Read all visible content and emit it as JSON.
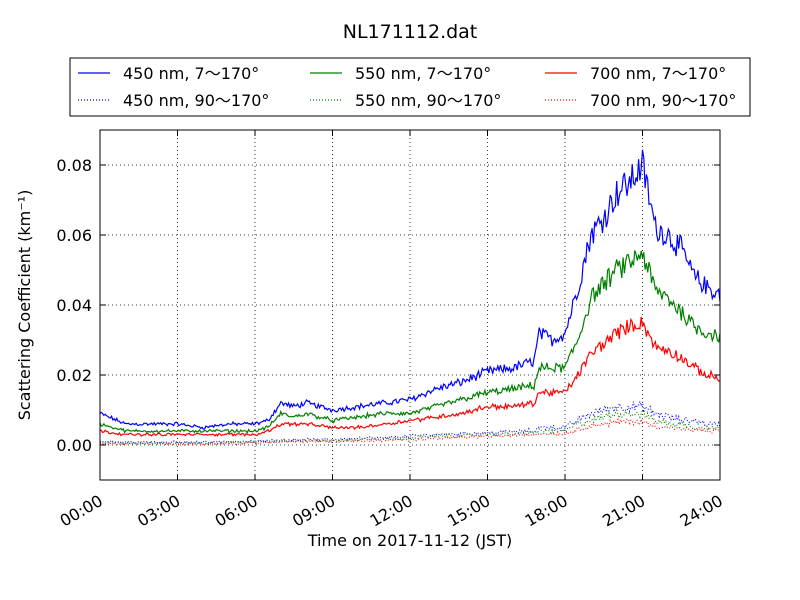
{
  "chart_data": {
    "type": "line",
    "title": "NL171112.dat",
    "xlabel": "Time on 2017-11-12 (JST)",
    "ylabel": "Scattering Coefficient (km⁻¹)",
    "x_unit": "hours",
    "xlim": [
      0,
      24
    ],
    "ylim": [
      -0.01,
      0.09
    ],
    "x_ticks": [
      0,
      3,
      6,
      9,
      12,
      15,
      18,
      21,
      24
    ],
    "x_tick_labels": [
      "00:00",
      "03:00",
      "06:00",
      "09:00",
      "12:00",
      "15:00",
      "18:00",
      "21:00",
      "24:00"
    ],
    "y_ticks": [
      0.0,
      0.02,
      0.04,
      0.06,
      0.08
    ],
    "y_tick_labels": [
      "0.00",
      "0.02",
      "0.04",
      "0.06",
      "0.08"
    ],
    "grid": true,
    "legend_placement": "top, above plot, 3 columns",
    "x": [
      0,
      1,
      2,
      3,
      4,
      5,
      6,
      6.5,
      7,
      7.5,
      8,
      9,
      10,
      11,
      12,
      13,
      14,
      15,
      16,
      16.8,
      17,
      17.5,
      18,
      18.5,
      19,
      19.5,
      20,
      20.5,
      21,
      21.5,
      22,
      22.5,
      23,
      23.5,
      24
    ],
    "series": [
      {
        "name": "450 nm, 7～170°",
        "color": "#0000ff",
        "style": "solid",
        "values": [
          0.009,
          0.006,
          0.006,
          0.006,
          0.005,
          0.006,
          0.006,
          0.007,
          0.012,
          0.011,
          0.012,
          0.01,
          0.011,
          0.012,
          0.013,
          0.016,
          0.018,
          0.021,
          0.022,
          0.024,
          0.032,
          0.03,
          0.032,
          0.045,
          0.06,
          0.065,
          0.072,
          0.075,
          0.08,
          0.062,
          0.06,
          0.056,
          0.048,
          0.045,
          0.043
        ]
      },
      {
        "name": "450 nm, 90～170°",
        "color": "#0000ff",
        "style": "dotted",
        "values": [
          0.001,
          0.0008,
          0.0008,
          0.0008,
          0.0008,
          0.001,
          0.001,
          0.0012,
          0.0015,
          0.0015,
          0.0015,
          0.0015,
          0.002,
          0.002,
          0.0025,
          0.003,
          0.0032,
          0.0035,
          0.0037,
          0.004,
          0.005,
          0.005,
          0.005,
          0.007,
          0.009,
          0.01,
          0.011,
          0.011,
          0.011,
          0.009,
          0.008,
          0.007,
          0.007,
          0.006,
          0.006
        ]
      },
      {
        "name": "550 nm, 7～170°",
        "color": "#008000",
        "style": "solid",
        "values": [
          0.006,
          0.004,
          0.004,
          0.004,
          0.004,
          0.004,
          0.004,
          0.005,
          0.009,
          0.008,
          0.009,
          0.007,
          0.008,
          0.009,
          0.009,
          0.011,
          0.013,
          0.015,
          0.016,
          0.017,
          0.022,
          0.022,
          0.022,
          0.03,
          0.042,
          0.046,
          0.05,
          0.052,
          0.055,
          0.044,
          0.042,
          0.038,
          0.034,
          0.032,
          0.031
        ]
      },
      {
        "name": "550 nm, 90～170°",
        "color": "#008000",
        "style": "dotted",
        "values": [
          0.0006,
          0.0005,
          0.0005,
          0.0005,
          0.0005,
          0.0007,
          0.0008,
          0.001,
          0.0012,
          0.0012,
          0.0012,
          0.0012,
          0.0015,
          0.0017,
          0.002,
          0.0025,
          0.0027,
          0.003,
          0.0032,
          0.0035,
          0.004,
          0.004,
          0.004,
          0.006,
          0.007,
          0.008,
          0.009,
          0.009,
          0.009,
          0.007,
          0.006,
          0.006,
          0.005,
          0.005,
          0.005
        ]
      },
      {
        "name": "700 nm, 7～170°",
        "color": "#ff0000",
        "style": "solid",
        "values": [
          0.004,
          0.003,
          0.003,
          0.003,
          0.003,
          0.003,
          0.003,
          0.004,
          0.006,
          0.006,
          0.006,
          0.005,
          0.005,
          0.006,
          0.007,
          0.008,
          0.009,
          0.011,
          0.011,
          0.012,
          0.015,
          0.015,
          0.015,
          0.02,
          0.026,
          0.029,
          0.032,
          0.034,
          0.035,
          0.028,
          0.027,
          0.025,
          0.022,
          0.02,
          0.019
        ]
      },
      {
        "name": "700 nm, 90～170°",
        "color": "#ff0000",
        "style": "dotted",
        "values": [
          0.0004,
          0.0003,
          0.0003,
          0.0003,
          0.0003,
          0.0005,
          0.0006,
          0.0007,
          0.001,
          0.001,
          0.001,
          0.001,
          0.0012,
          0.0013,
          0.0015,
          0.002,
          0.0022,
          0.0025,
          0.0027,
          0.003,
          0.0032,
          0.0032,
          0.0033,
          0.0045,
          0.0055,
          0.006,
          0.0065,
          0.0068,
          0.0065,
          0.0055,
          0.005,
          0.0045,
          0.0042,
          0.004,
          0.004
        ]
      }
    ]
  }
}
